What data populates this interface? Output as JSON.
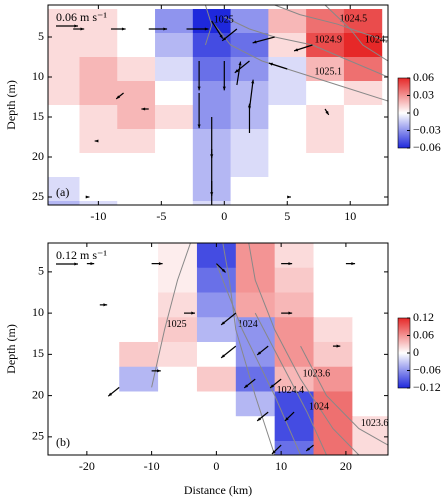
{
  "chart_data": [
    {
      "type": "heatmap",
      "panel_label": "(a)",
      "ylabel": "Depth (m)",
      "xlim": [
        -14,
        13
      ],
      "xticks": [
        -10,
        -5,
        0,
        5,
        10
      ],
      "ylim": [
        1,
        26
      ],
      "yticks": [
        5,
        10,
        15,
        20,
        25
      ],
      "clim": [
        -0.06,
        0.06
      ],
      "cticks": [
        0.06,
        0.03,
        0,
        {
          "value": -0.03,
          "label": "−0.03"
        },
        {
          "value": -0.06,
          "label": "−0.06"
        }
      ],
      "reference_arrow": {
        "value": 0.06,
        "label": "0.06 m s⁻¹"
      },
      "field": {
        "x": [
          -13,
          -10,
          -7,
          -4,
          -1,
          2,
          5,
          8,
          11
        ],
        "depth": [
          3,
          6,
          9,
          12,
          15,
          18,
          21,
          24,
          27
        ],
        "values": [
          [
            0.01,
            0.01,
            0.0,
            -0.03,
            -0.06,
            -0.03,
            0.02,
            0.04,
            0.05
          ],
          [
            0.01,
            0.01,
            0.0,
            -0.02,
            -0.05,
            -0.04,
            0.01,
            0.05,
            0.06
          ],
          [
            0.01,
            0.02,
            0.01,
            -0.01,
            -0.04,
            -0.03,
            -0.01,
            0.02,
            0.04
          ],
          [
            0.01,
            0.02,
            0.02,
            0.0,
            -0.03,
            -0.02,
            -0.01,
            0.0,
            0.01
          ],
          [
            0.0,
            0.01,
            0.02,
            0.01,
            -0.03,
            -0.02,
            0.0,
            0.01,
            0.0
          ],
          [
            0.0,
            0.01,
            0.01,
            0.0,
            -0.02,
            -0.01,
            0.0,
            0.01,
            0.0
          ],
          [
            0.0,
            0.0,
            0.0,
            0.0,
            -0.02,
            -0.01,
            0.0,
            0.0,
            0.0
          ],
          [
            -0.01,
            0.0,
            0.0,
            0.0,
            -0.02,
            0.0,
            0.0,
            0.0,
            0.0
          ],
          [
            -0.02,
            -0.01,
            0.0,
            0.0,
            -0.01,
            0.0,
            0.0,
            0.0,
            0.0
          ]
        ]
      },
      "contours": [
        {
          "label": "1024.5",
          "points": [
            [
              4,
              1
            ],
            [
              6,
              2.2
            ],
            [
              9,
              3.4
            ],
            [
              11,
              4.5
            ],
            [
              13,
              5.5
            ]
          ]
        },
        {
          "label": "1024.9",
          "points": [
            [
              0,
              2.5
            ],
            [
              2,
              4
            ],
            [
              4,
              5
            ],
            [
              7,
              6
            ],
            [
              10,
              8
            ],
            [
              13,
              10
            ]
          ]
        },
        {
          "label": "1025.1",
          "points": [
            [
              -1,
              3
            ],
            [
              0.5,
              6
            ],
            [
              3,
              8
            ],
            [
              7,
              10
            ],
            [
              10,
              11.5
            ],
            [
              13,
              13
            ]
          ]
        },
        {
          "label": "1024.5",
          "points": [
            [
              8,
              1
            ],
            [
              10,
              4
            ],
            [
              11,
              6
            ],
            [
              13,
              8
            ]
          ]
        },
        {
          "label": "1025",
          "points": [
            [
              -1.5,
              1
            ],
            [
              -1,
              3.5
            ],
            [
              -1.5,
              6
            ]
          ]
        }
      ],
      "arrows": [
        [
          -12,
          4,
          0.03,
          0
        ],
        [
          -9,
          4,
          0.04,
          0
        ],
        [
          -6,
          4,
          0.05,
          0
        ],
        [
          -3,
          4,
          0.06,
          0
        ],
        [
          -1,
          3,
          0.03,
          0.03
        ],
        [
          1,
          4,
          -0.04,
          0.02
        ],
        [
          4,
          5,
          -0.06,
          0.01
        ],
        [
          7,
          6,
          -0.05,
          0.01
        ],
        [
          -2,
          8,
          0.0,
          0.05
        ],
        [
          0,
          8,
          0.0,
          0.05
        ],
        [
          2,
          8,
          -0.04,
          0.02
        ],
        [
          5,
          9,
          -0.05,
          -0.01
        ],
        [
          -2,
          12,
          0,
          0.06
        ],
        [
          -1,
          15,
          0,
          0.07
        ],
        [
          -1,
          19,
          0,
          0.08
        ],
        [
          -1,
          23,
          0,
          0.06
        ],
        [
          1,
          11,
          0.01,
          -0.04
        ],
        [
          2,
          14,
          0.01,
          -0.05
        ],
        [
          2,
          17,
          0,
          -0.05
        ],
        [
          -8,
          12,
          -0.02,
          0.01
        ],
        [
          -6,
          14,
          -0.02,
          0
        ],
        [
          -10,
          18,
          -0.01,
          0
        ],
        [
          8,
          14,
          0.01,
          0.01
        ],
        [
          -11,
          25,
          0.01,
          0
        ],
        [
          5,
          25,
          0.01,
          0
        ]
      ]
    },
    {
      "type": "heatmap",
      "panel_label": "(b)",
      "ylabel": "Depth (m)",
      "xlabel": "Distance (km)",
      "xlim": [
        -26,
        26.5
      ],
      "xticks": [
        -20,
        -10,
        0,
        10,
        20
      ],
      "ylim": [
        1.5,
        27.2
      ],
      "yticks": [
        5,
        10,
        15,
        20,
        25
      ],
      "clim": [
        -0.12,
        0.12
      ],
      "cticks": [
        0.12,
        0.06,
        0,
        {
          "value": -0.06,
          "label": "−0.06"
        },
        {
          "value": -0.12,
          "label": "−0.12"
        }
      ],
      "reference_arrow": {
        "value": 0.12,
        "label": "0.12 m s⁻¹"
      },
      "field": {
        "x": [
          -24,
          -18,
          -12,
          -6,
          0,
          6,
          12,
          18,
          24
        ],
        "depth": [
          3,
          6,
          9,
          12,
          15,
          18,
          21,
          24,
          27
        ],
        "values": [
          [
            0,
            0,
            0,
            0.01,
            -0.1,
            0.06,
            0.02,
            0,
            0
          ],
          [
            0,
            0,
            0,
            0.01,
            -0.08,
            0.06,
            0.03,
            0,
            0
          ],
          [
            0,
            0,
            0,
            0.02,
            -0.06,
            0.05,
            0.04,
            0,
            0
          ],
          [
            0,
            0,
            0,
            0.03,
            -0.04,
            -0.06,
            0.06,
            0.02,
            0
          ],
          [
            0,
            0,
            0.03,
            0.02,
            0,
            -0.06,
            0.06,
            0.03,
            0
          ],
          [
            0,
            0,
            -0.04,
            0,
            0.03,
            -0.08,
            0.04,
            0.06,
            0
          ],
          [
            0,
            0,
            0,
            0,
            0,
            -0.04,
            -0.1,
            0.08,
            0
          ],
          [
            0,
            0,
            0,
            0,
            0,
            0.0,
            -0.1,
            0.08,
            0.02
          ],
          [
            0,
            0,
            0,
            0,
            0,
            0.0,
            -0.08,
            0.08,
            0.02
          ]
        ]
      },
      "contours": [
        {
          "label": "1025",
          "points": [
            [
              -4,
              1.5
            ],
            [
              -6,
              6
            ],
            [
              -8,
              12
            ],
            [
              -10,
              19
            ]
          ]
        },
        {
          "label": "1024",
          "points": [
            [
              1,
              1.5
            ],
            [
              2,
              6
            ],
            [
              3,
              12
            ],
            [
              6,
              20
            ],
            [
              9,
              27.2
            ]
          ]
        },
        {
          "label": "1024.4",
          "points": [
            [
              0,
              4
            ],
            [
              4,
              12
            ],
            [
              9,
              20
            ],
            [
              13,
              27.2
            ]
          ]
        },
        {
          "label": "1023.6",
          "points": [
            [
              5,
              1.5
            ],
            [
              6,
              6
            ],
            [
              9,
              12
            ],
            [
              13,
              18
            ],
            [
              18,
              24
            ],
            [
              22,
              27.2
            ]
          ]
        },
        {
          "label": "1024",
          "points": [
            [
              6,
              10
            ],
            [
              10,
              16
            ],
            [
              14,
              22
            ],
            [
              17,
              27.2
            ]
          ]
        },
        {
          "label": "1023.6",
          "points": [
            [
              13,
              14
            ],
            [
              17,
              20
            ],
            [
              22,
              24
            ],
            [
              26.5,
              26
            ]
          ]
        }
      ],
      "arrows": [
        [
          -20,
          4,
          0.04,
          0
        ],
        [
          -10,
          4,
          0.06,
          0
        ],
        [
          0,
          4,
          0.05,
          0.03
        ],
        [
          10,
          4,
          0.06,
          0
        ],
        [
          20,
          4,
          0.05,
          0
        ],
        [
          -18,
          9,
          0.04,
          0
        ],
        [
          -5,
          10,
          0.06,
          0
        ],
        [
          3,
          10,
          -0.08,
          0.04
        ],
        [
          10,
          10,
          0.06,
          0
        ],
        [
          3,
          14,
          -0.08,
          0.04
        ],
        [
          8,
          14,
          -0.06,
          0.03
        ],
        [
          18,
          14,
          0.04,
          0
        ],
        [
          -10,
          17,
          0.05,
          0
        ],
        [
          6,
          18,
          -0.06,
          0.03
        ],
        [
          10,
          18,
          -0.06,
          0.03
        ],
        [
          -15,
          19,
          -0.06,
          0.03
        ],
        [
          8,
          22,
          -0.06,
          0.03
        ],
        [
          12,
          22,
          -0.05,
          0.03
        ],
        [
          10,
          26,
          -0.05,
          0.03
        ],
        [
          15,
          26,
          -0.04,
          0.02
        ]
      ]
    }
  ]
}
